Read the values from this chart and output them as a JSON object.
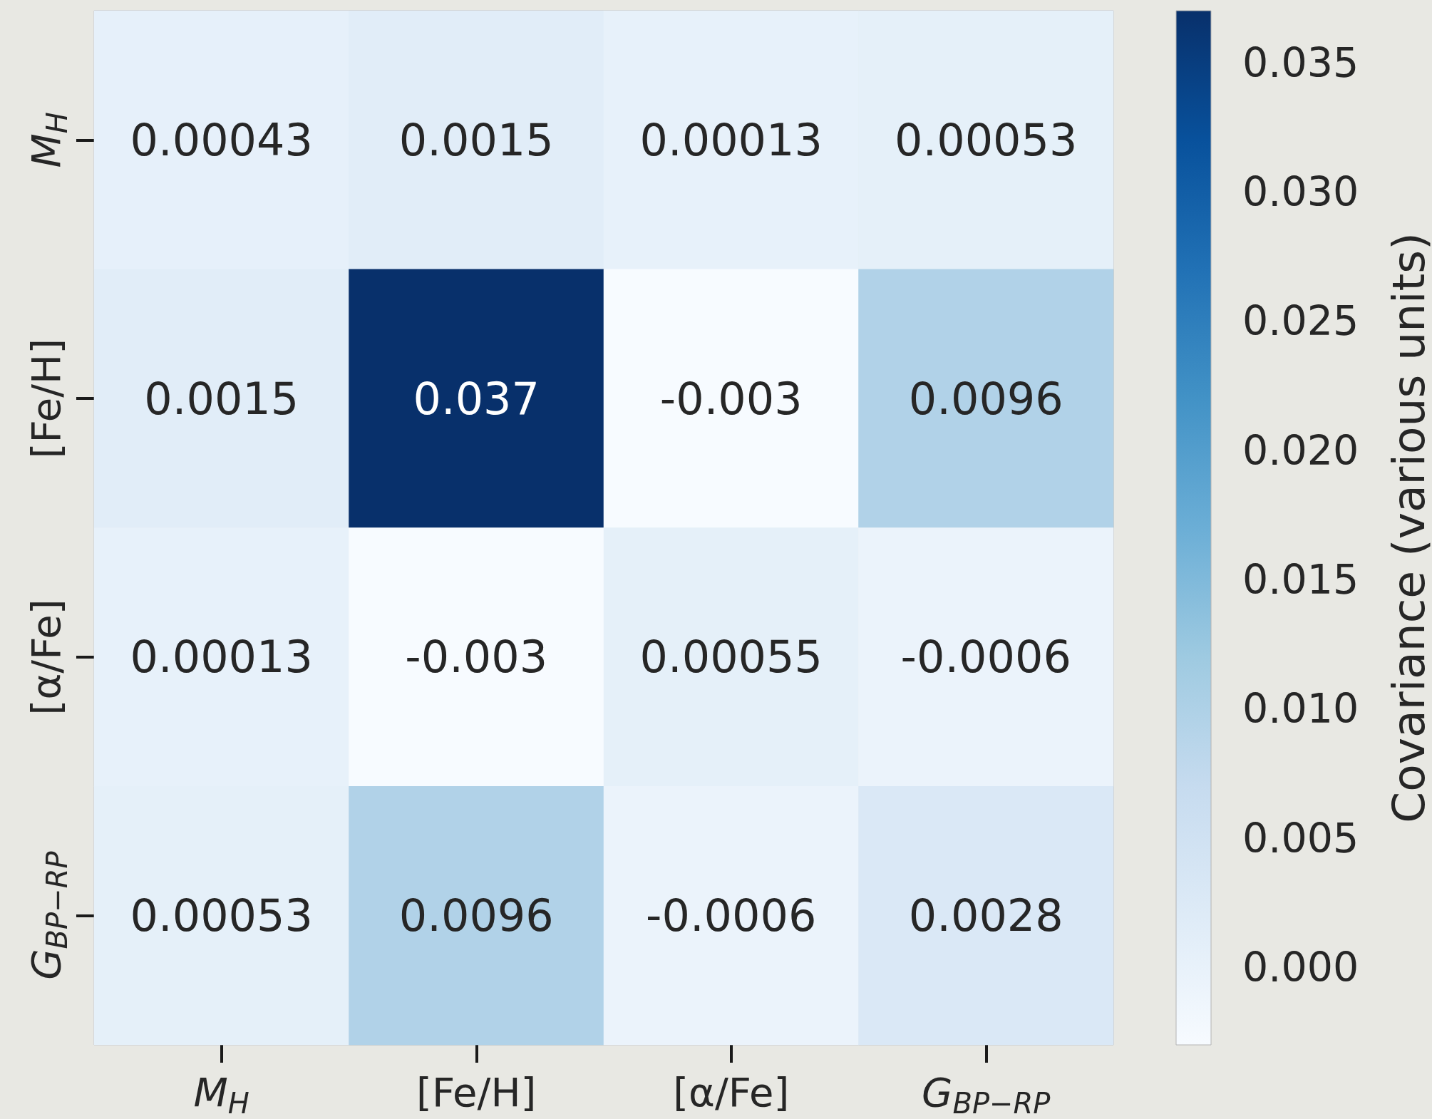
{
  "chart_data": {
    "type": "heatmap",
    "categories": [
      "M$_{H}$",
      "[Fe/H]",
      "[α/Fe]",
      "G$_{BP−RP}$"
    ],
    "y_categories": [
      "M$_{H}$",
      "[Fe/H]",
      "[α/Fe]",
      "G$_{BP−RP}$"
    ],
    "cells": [
      [
        0.00043,
        0.0015,
        0.00013,
        0.00053
      ],
      [
        0.0015,
        0.037,
        -0.003,
        0.0096
      ],
      [
        0.00013,
        -0.003,
        0.00055,
        -0.0006
      ],
      [
        0.00053,
        0.0096,
        -0.0006,
        0.0028
      ]
    ],
    "data_labels": true,
    "clabel": "Covariance (various units)",
    "clim": [
      -0.003,
      0.037
    ],
    "cticks": [
      {
        "value": 0,
        "label": "0.000"
      },
      0.005,
      {
        "value": 0.01,
        "label": "0.010"
      },
      0.015,
      {
        "value": 0.02,
        "label": "0.020"
      },
      0.025,
      {
        "value": 0.03,
        "label": "0.030"
      },
      0.035
    ]
  }
}
